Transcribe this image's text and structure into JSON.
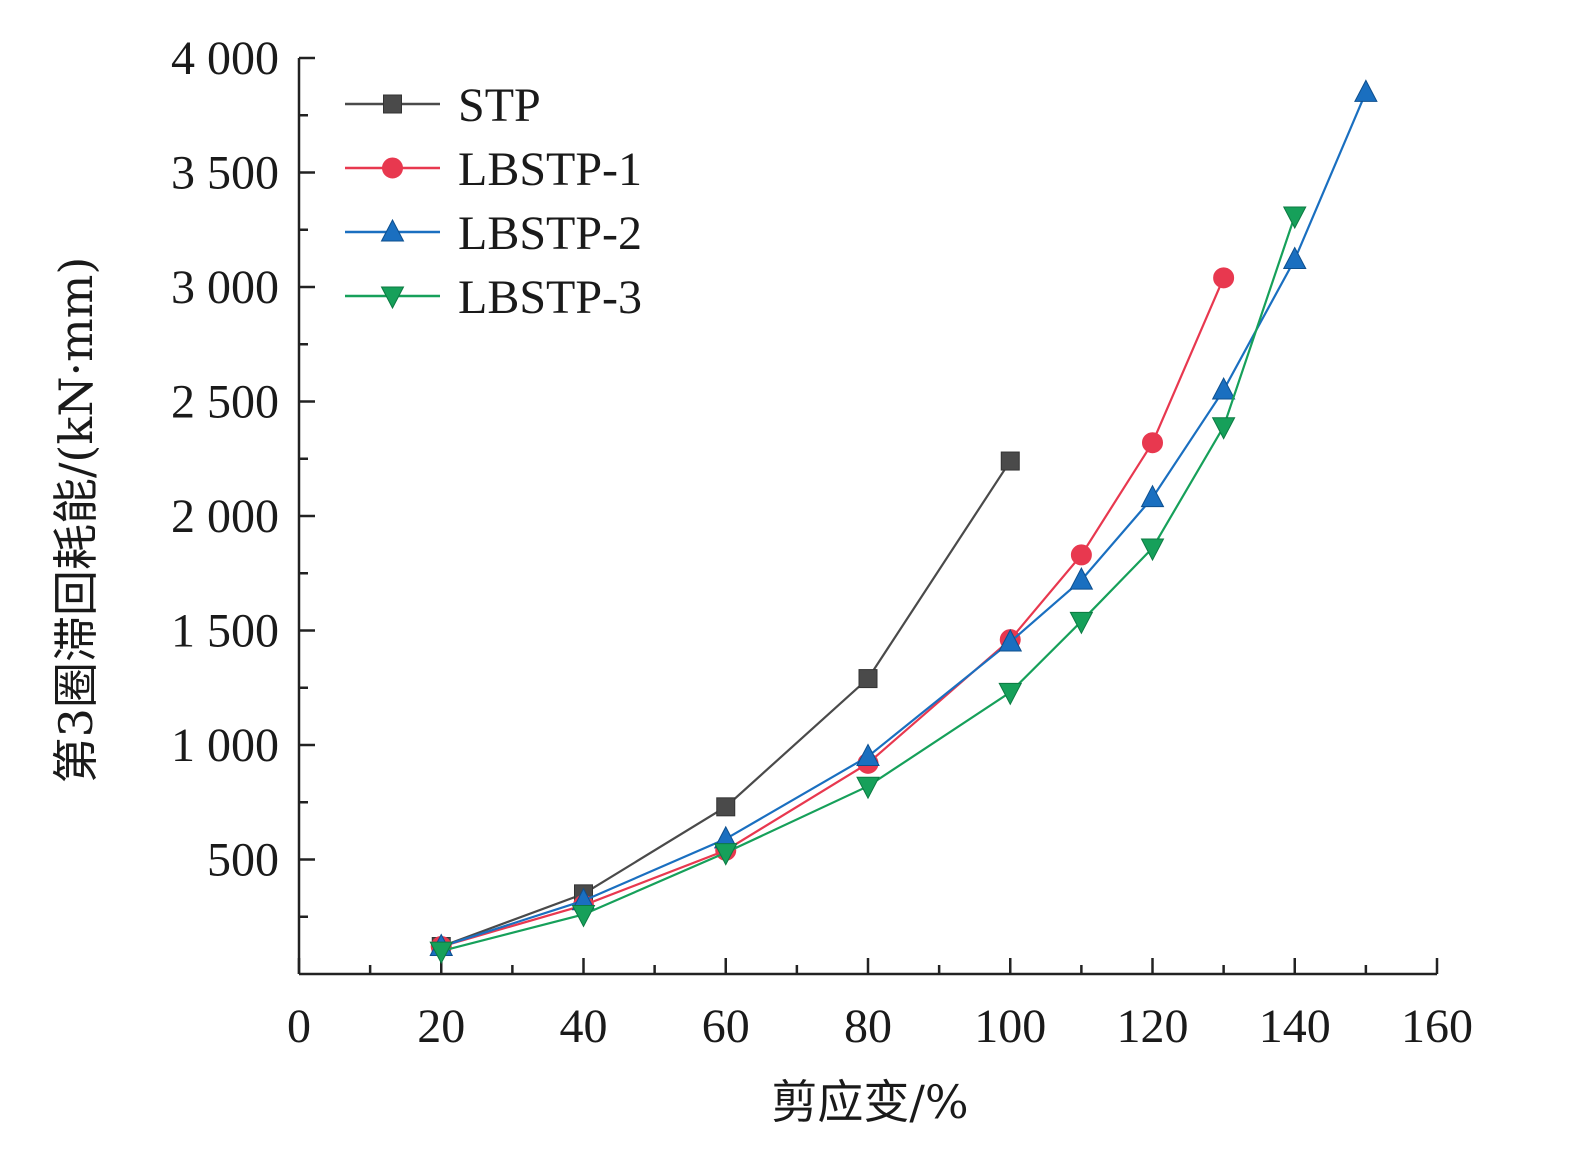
{
  "chart_data": {
    "type": "line",
    "xlabel": "剪应变/%",
    "ylabel": "第3圈滞回耗能/(kN·mm)",
    "xlim": [
      0,
      160
    ],
    "ylim": [
      0,
      4000
    ],
    "x_ticks": [
      0,
      20,
      40,
      60,
      80,
      100,
      120,
      140,
      160
    ],
    "x_tick_labels": [
      "0",
      "20",
      "40",
      "60",
      "80",
      "100",
      "120",
      "140",
      "160"
    ],
    "y_ticks": [
      500,
      1000,
      1500,
      2000,
      2500,
      3000,
      3500,
      4000
    ],
    "y_tick_labels": [
      "500",
      "1 000",
      "1 500",
      "2 000",
      "2 500",
      "3 000",
      "3 500",
      "4 000"
    ],
    "legend_position": "top-left",
    "series": [
      {
        "name": "STP",
        "color": "#4a4a4a",
        "marker": "square",
        "x": [
          20,
          40,
          60,
          80,
          100
        ],
        "y": [
          120,
          350,
          730,
          1290,
          2240
        ]
      },
      {
        "name": "LBSTP-1",
        "color": "#e8384f",
        "marker": "circle",
        "x": [
          20,
          40,
          60,
          80,
          100,
          110,
          120,
          130
        ],
        "y": [
          120,
          300,
          540,
          920,
          1460,
          1830,
          2320,
          3040
        ]
      },
      {
        "name": "LBSTP-2",
        "color": "#1a6fc0",
        "marker": "triangle-up",
        "x": [
          20,
          40,
          60,
          80,
          100,
          110,
          120,
          130,
          140,
          150
        ],
        "y": [
          120,
          320,
          590,
          950,
          1450,
          1720,
          2080,
          2550,
          3120,
          3850
        ]
      },
      {
        "name": "LBSTP-3",
        "color": "#16a05a",
        "marker": "triangle-down",
        "x": [
          20,
          40,
          60,
          80,
          100,
          110,
          120,
          130,
          140
        ],
        "y": [
          100,
          260,
          530,
          820,
          1230,
          1540,
          1860,
          2390,
          3310
        ]
      }
    ]
  }
}
